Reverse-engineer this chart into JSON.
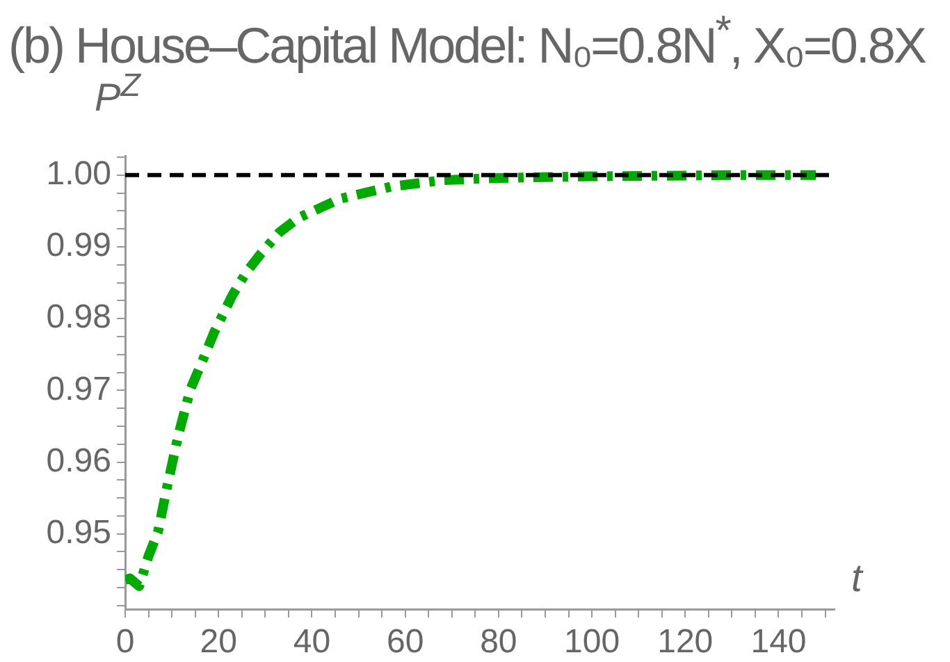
{
  "chart_data": {
    "type": "line",
    "title": "(b) House–Capital Model: N₀=0.8N$^{*}$, X₀=0.8X",
    "ylabel": "P$^{Z}$",
    "xlabel": "t",
    "x": [
      0,
      1,
      3,
      5,
      7,
      9,
      11.4,
      14,
      17,
      19,
      23,
      26,
      29,
      33,
      37,
      46,
      57,
      68,
      80,
      96,
      112,
      130,
      148
    ],
    "series": [
      {
        "color": "#00aa00",
        "line_style": "dashed",
        "values": [
          0.9436,
          0.9438,
          0.9427,
          0.9469,
          0.9502,
          0.9566,
          0.9638,
          0.9702,
          0.9748,
          0.978,
          0.9833,
          0.9865,
          0.989,
          0.992,
          0.994,
          0.9967,
          0.9984,
          0.9993,
          0.9996,
          0.9998,
          0.9999,
          1.0,
          1.0
        ]
      }
    ],
    "xlim": [
      0,
      152
    ],
    "ylim": [
      0.9395,
      1.0027
    ],
    "xticks": [
      0,
      {
        "value": 5,
        "label": null
      },
      20,
      {
        "value": 10,
        "label": null
      },
      {
        "value": 15,
        "label": null
      },
      40,
      {
        "value": 25,
        "label": null
      },
      {
        "value": 30,
        "label": null
      },
      {
        "value": 35,
        "label": null
      },
      60,
      {
        "value": 45,
        "label": null
      },
      {
        "value": 50,
        "label": null
      },
      {
        "value": 55,
        "label": null
      },
      80,
      {
        "value": 65,
        "label": null
      },
      {
        "value": 70,
        "label": null
      },
      {
        "value": 75,
        "label": null
      },
      100,
      {
        "value": 85,
        "label": null
      },
      {
        "value": 90,
        "label": null
      },
      {
        "value": 95,
        "label": null
      },
      120,
      {
        "value": 105,
        "label": null
      },
      {
        "value": 110,
        "label": null
      },
      {
        "value": 115,
        "label": null
      },
      140,
      {
        "value": 125,
        "label": null
      },
      {
        "value": 130,
        "label": null
      },
      {
        "value": 135,
        "label": null
      },
      {
        "value": 145,
        "label": null
      },
      {
        "value": 150,
        "label": null
      }
    ],
    "yticks": [
      {
        "value": 0.94,
        "label": null
      },
      {
        "value": 0.9425,
        "label": null
      },
      0.95,
      {
        "value": 0.9475,
        "label": null
      },
      {
        "value": 0.945,
        "label": null
      },
      0.96,
      {
        "value": 0.9525,
        "label": null
      },
      {
        "value": 0.955,
        "label": null
      },
      {
        "value": 0.9575,
        "label": null
      },
      0.97,
      {
        "value": 0.9625,
        "label": null
      },
      {
        "value": 0.965,
        "label": null
      },
      {
        "value": 0.9675,
        "label": null
      },
      0.98,
      {
        "value": 0.9725,
        "label": null
      },
      {
        "value": 0.975,
        "label": null
      },
      {
        "value": 0.9775,
        "label": null
      },
      0.99,
      {
        "value": 0.9825,
        "label": null
      },
      {
        "value": 0.985,
        "label": null
      },
      {
        "value": 0.9875,
        "label": null
      },
      {
        "value": 1.0,
        "label": "1.00"
      },
      {
        "value": 0.9925,
        "label": null
      },
      {
        "value": 0.995,
        "label": null
      },
      {
        "value": 0.9975,
        "label": null
      },
      {
        "value": 1.0025,
        "label": null
      }
    ],
    "ref_lines": [
      {
        "axis": "y",
        "value": 1.0,
        "color": "#000000",
        "line_style": "dashed"
      }
    ],
    "grid": false,
    "legend": false
  }
}
